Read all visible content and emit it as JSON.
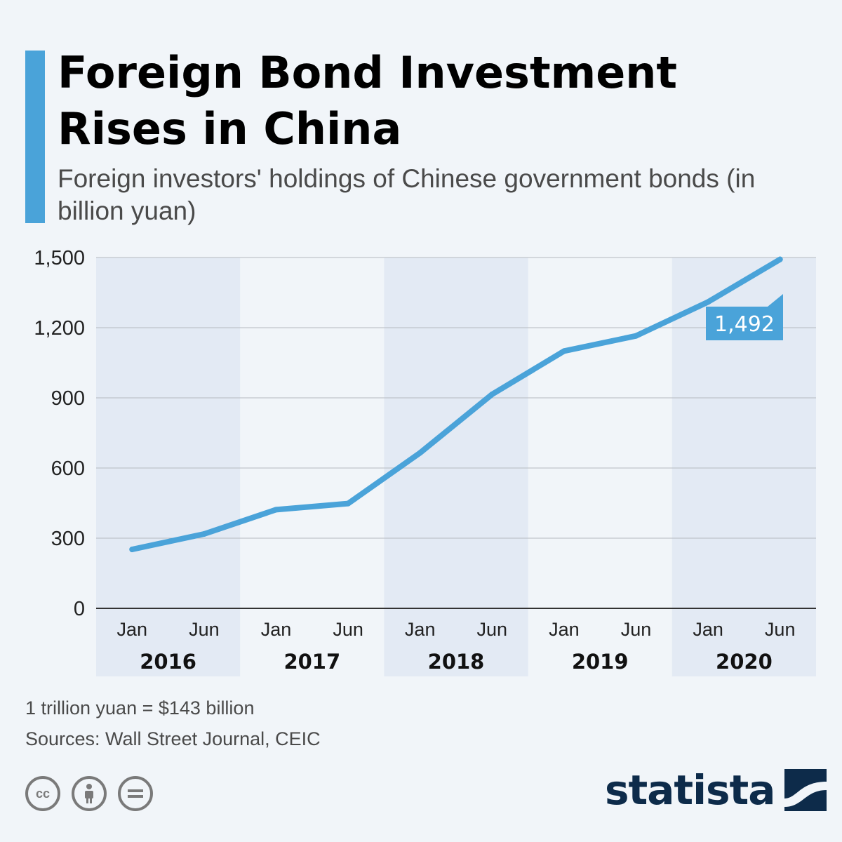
{
  "header": {
    "title": "Foreign Bond Investment Rises in China",
    "subtitle": "Foreign investors' holdings of Chinese government bonds (in billion yuan)"
  },
  "colors": {
    "accent": "#4aa3d9",
    "line": "#4aa3d9",
    "band": "#e3eaf4",
    "grid": "#b5b9c0",
    "brand": "#0d2b4a"
  },
  "chart_data": {
    "type": "line",
    "x": [
      "Jan 2016",
      "Jun 2016",
      "Jan 2017",
      "Jun 2017",
      "Jan 2018",
      "Jun 2018",
      "Jan 2019",
      "Jun 2019",
      "Jan 2020",
      "Jun 2020"
    ],
    "x_tick_labels": [
      "Jan",
      "Jun",
      "Jan",
      "Jun",
      "Jan",
      "Jun",
      "Jan",
      "Jun",
      "Jan",
      "Jun"
    ],
    "year_labels": [
      "2016",
      "2017",
      "2018",
      "2019",
      "2020"
    ],
    "series": [
      {
        "values": [
          252,
          318,
          422,
          448,
          665,
          915,
          1100,
          1165,
          1310,
          1492
        ]
      }
    ],
    "y_ticks": [
      "0",
      "300",
      "600",
      "900",
      "1,200",
      "1,500"
    ],
    "ylim": [
      0,
      1500
    ],
    "grid": true,
    "last_value_label": "1,492"
  },
  "footer": {
    "note": "1 trillion yuan = $143 billion",
    "sources": "Sources: Wall Street Journal, CEIC",
    "license_icons": [
      "creative-commons-icon",
      "attribution-icon",
      "no-derivatives-icon"
    ],
    "brand": "statista"
  }
}
